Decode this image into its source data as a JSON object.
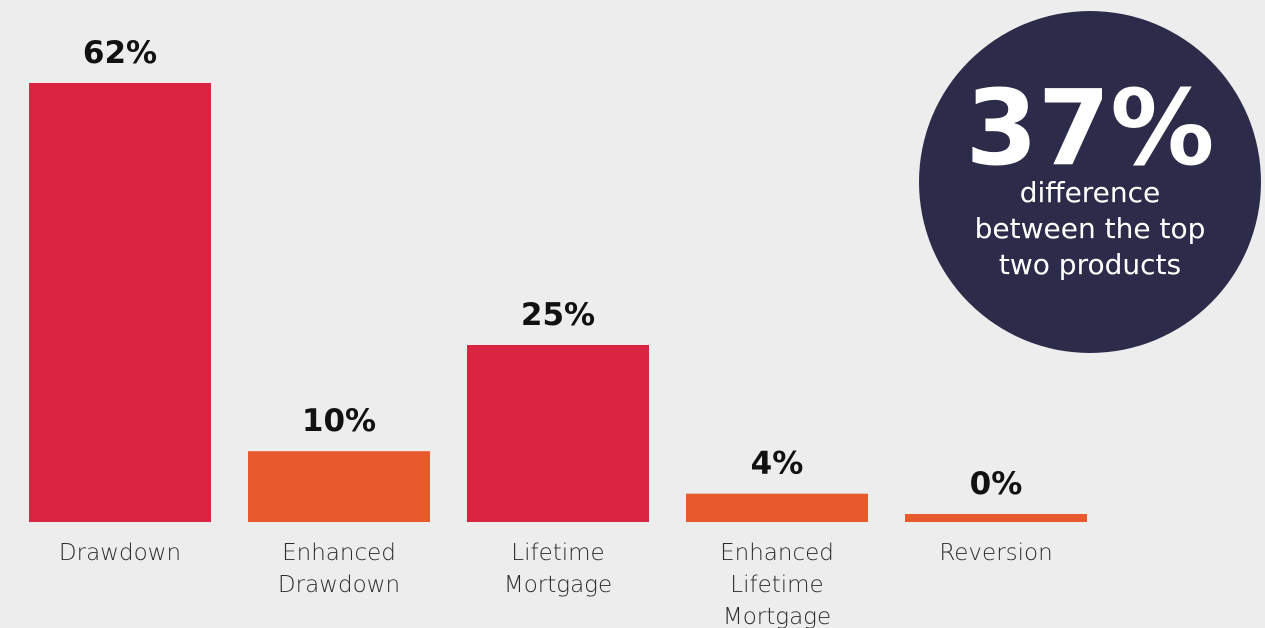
{
  "chart_data": {
    "type": "bar",
    "categories": [
      [
        "Drawdown"
      ],
      [
        "Enhanced",
        "Drawdown"
      ],
      [
        "Lifetime",
        "Mortgage"
      ],
      [
        "Enhanced",
        "Lifetime",
        "Mortgage"
      ],
      [
        "Reversion"
      ]
    ],
    "values": [
      62,
      10,
      25,
      4,
      0
    ],
    "value_labels": [
      "62%",
      "10%",
      "25%",
      "4%",
      "0%"
    ],
    "bar_colors": [
      "#d92442",
      "#e85a2c",
      "#d92442",
      "#e85a2c",
      "#e85a2c"
    ],
    "ylim": [
      0,
      62
    ],
    "grid": false,
    "title": "",
    "xlabel": "",
    "ylabel": ""
  },
  "callout": {
    "value": "37%",
    "text_lines": [
      "difference",
      "between the top",
      "two products"
    ],
    "color": "#2d2b4a"
  }
}
